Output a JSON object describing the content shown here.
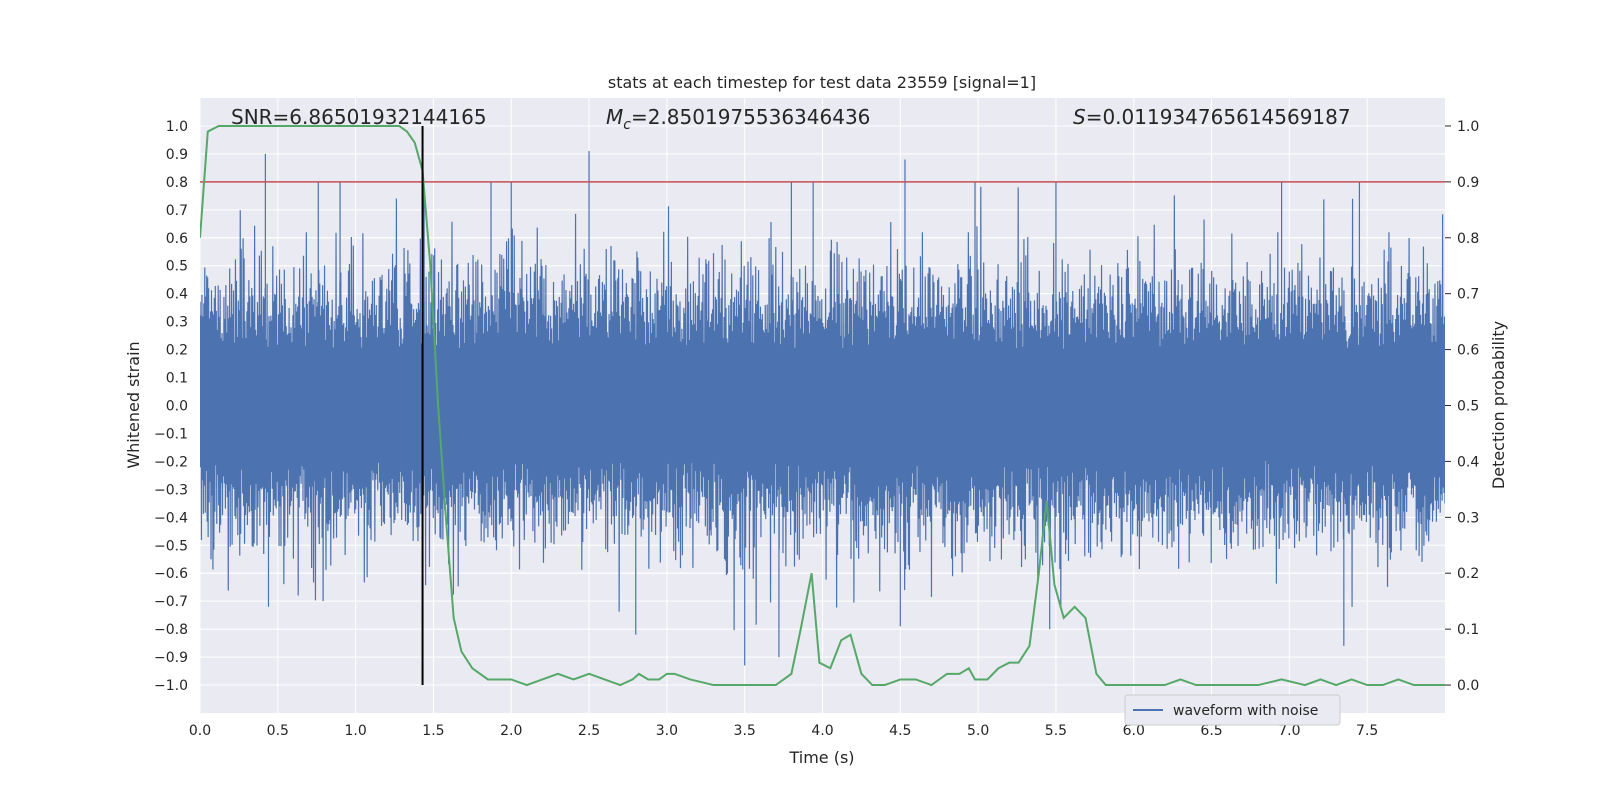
{
  "chart_data": {
    "type": "line",
    "title": "stats at each timestep for test data 23559 [signal=1]",
    "xlabel": "Time (s)",
    "ylabel_left": "Whitened strain",
    "ylabel_right": "Detection probability",
    "xlim": [
      0.0,
      8.0
    ],
    "ylim_left": [
      -1.1,
      1.1
    ],
    "ylim_right": [
      -0.05,
      1.05
    ],
    "x_ticks": [
      "0.0",
      "0.5",
      "1.0",
      "1.5",
      "2.0",
      "2.5",
      "3.0",
      "3.5",
      "4.0",
      "4.5",
      "5.0",
      "5.5",
      "6.0",
      "6.5",
      "7.0",
      "7.5"
    ],
    "y_ticks_left": [
      "1.0",
      "0.9",
      "0.8",
      "0.7",
      "0.6",
      "0.5",
      "0.4",
      "0.3",
      "0.2",
      "0.1",
      "0.0",
      "−0.1",
      "−0.2",
      "−0.3",
      "−0.4",
      "−0.5",
      "−0.6",
      "−0.7",
      "−0.8",
      "−0.9",
      "−1.0"
    ],
    "y_ticks_right": [
      "1.0",
      "0.9",
      "0.8",
      "0.7",
      "0.6",
      "0.5",
      "0.4",
      "0.3",
      "0.2",
      "0.1",
      "0.0"
    ],
    "grid": true,
    "legend_position": "bottom-right",
    "annotations": {
      "snr": "SNR=6.86501932144165",
      "mc_prefix": "M",
      "mc_sub": "c",
      "mc_value": "=2.8501975536346436",
      "s_prefix": "S",
      "s_value": "=0.011934765614569187"
    },
    "threshold_probability": 0.9,
    "marker_time": 1.43,
    "series": [
      {
        "name": "waveform with noise",
        "axis": "left",
        "color": "#4c72b0",
        "envelope_description": "dense noise, band roughly +/-0.4",
        "peaks_upper": [
          [
            0.42,
            0.9
          ],
          [
            0.76,
            0.8
          ],
          [
            0.9,
            0.8
          ],
          [
            1.44,
            0.76
          ],
          [
            1.87,
            0.8
          ],
          [
            2.0,
            0.8
          ],
          [
            2.5,
            0.91
          ],
          [
            3.8,
            0.8
          ],
          [
            3.94,
            0.8
          ],
          [
            4.53,
            0.88
          ],
          [
            4.98,
            0.8
          ],
          [
            5.5,
            0.8
          ],
          [
            6.95,
            0.8
          ],
          [
            7.45,
            0.8
          ]
        ],
        "peaks_lower": [
          [
            0.44,
            -0.72
          ],
          [
            1.43,
            -0.76
          ],
          [
            2.8,
            -0.82
          ],
          [
            3.5,
            -0.93
          ],
          [
            3.72,
            -0.9
          ],
          [
            4.5,
            -0.79
          ],
          [
            5.46,
            -0.8
          ],
          [
            7.35,
            -0.86
          ]
        ]
      },
      {
        "name": "detection probability",
        "axis": "right",
        "color": "#55a868",
        "x": [
          0.0,
          0.05,
          0.12,
          0.2,
          0.4,
          0.6,
          0.8,
          1.0,
          1.2,
          1.28,
          1.33,
          1.38,
          1.43,
          1.48,
          1.53,
          1.58,
          1.63,
          1.68,
          1.75,
          1.85,
          2.0,
          2.1,
          2.2,
          2.3,
          2.4,
          2.5,
          2.6,
          2.7,
          2.78,
          2.82,
          2.88,
          2.95,
          3.0,
          3.05,
          3.15,
          3.3,
          3.5,
          3.6,
          3.7,
          3.8,
          3.86,
          3.93,
          3.98,
          4.05,
          4.12,
          4.18,
          4.25,
          4.32,
          4.4,
          4.5,
          4.6,
          4.7,
          4.8,
          4.88,
          4.94,
          4.98,
          5.06,
          5.13,
          5.2,
          5.26,
          5.33,
          5.39,
          5.44,
          5.49,
          5.55,
          5.62,
          5.69,
          5.76,
          5.82,
          6.0,
          6.2,
          6.3,
          6.4,
          6.6,
          6.8,
          6.95,
          7.1,
          7.2,
          7.3,
          7.4,
          7.5,
          7.6,
          7.7,
          7.8,
          7.9,
          8.0
        ],
        "y": [
          0.8,
          0.99,
          1.0,
          1.0,
          1.0,
          1.0,
          1.0,
          1.0,
          1.0,
          1.0,
          0.99,
          0.97,
          0.92,
          0.75,
          0.5,
          0.3,
          0.12,
          0.06,
          0.03,
          0.01,
          0.01,
          0.0,
          0.01,
          0.02,
          0.01,
          0.02,
          0.01,
          0.0,
          0.01,
          0.02,
          0.01,
          0.01,
          0.02,
          0.02,
          0.01,
          0.0,
          0.0,
          0.0,
          0.0,
          0.02,
          0.1,
          0.2,
          0.04,
          0.03,
          0.08,
          0.09,
          0.02,
          0.0,
          0.0,
          0.01,
          0.01,
          0.0,
          0.02,
          0.02,
          0.03,
          0.01,
          0.01,
          0.03,
          0.04,
          0.04,
          0.07,
          0.2,
          0.33,
          0.18,
          0.12,
          0.14,
          0.12,
          0.02,
          0.0,
          0.0,
          0.0,
          0.01,
          0.0,
          0.0,
          0.0,
          0.01,
          0.0,
          0.01,
          0.0,
          0.01,
          0.0,
          0.0,
          0.01,
          0.0,
          0.0,
          0.0
        ]
      }
    ]
  },
  "colors": {
    "plot_bg": "#eaeaf2",
    "grid": "#ffffff",
    "strain": "#4c72b0",
    "probability": "#55a868",
    "threshold": "#c44e52",
    "marker": "#000000"
  }
}
